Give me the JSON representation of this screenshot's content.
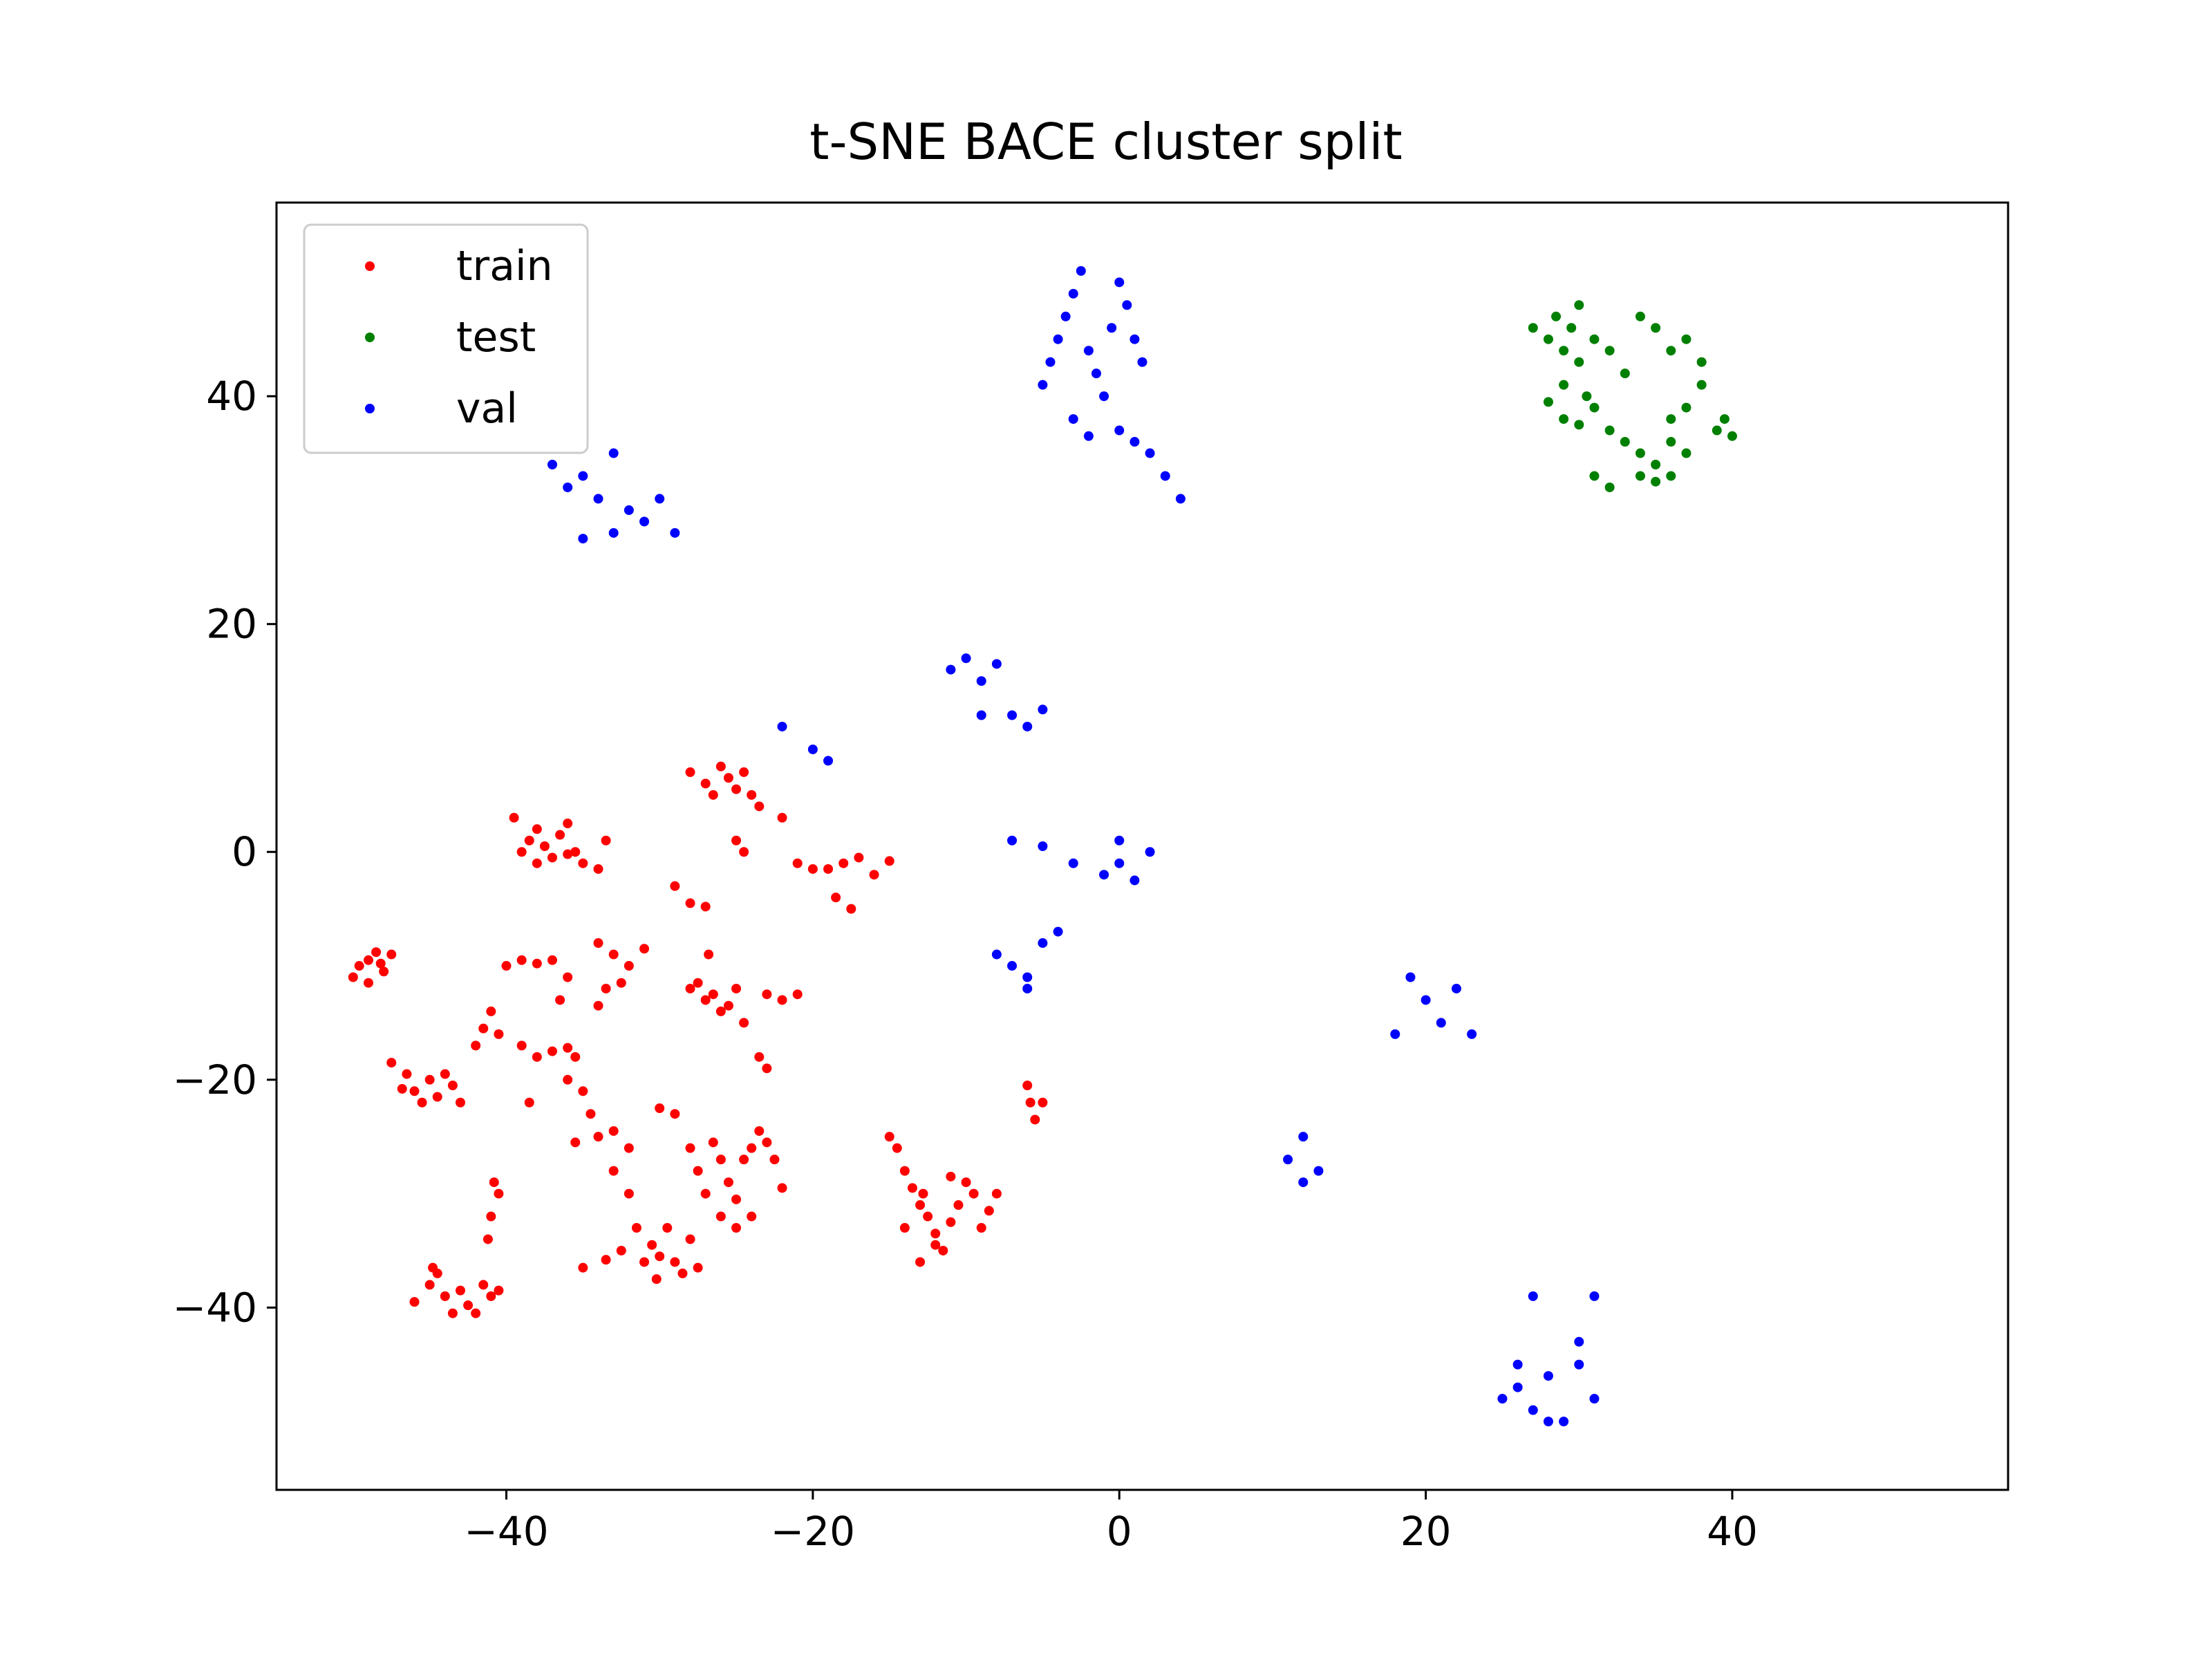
{
  "chart_data": {
    "type": "scatter",
    "title": "t-SNE BACE cluster split",
    "xlabel": "",
    "ylabel": "",
    "xlim": [
      -55,
      58
    ],
    "ylim": [
      -56,
      57
    ],
    "xticks": [
      -40,
      -20,
      0,
      20,
      40
    ],
    "yticks": [
      -40,
      -20,
      0,
      20,
      40
    ],
    "xtick_labels": [
      "−40",
      "−20",
      "0",
      "20",
      "40"
    ],
    "ytick_labels": [
      "−40",
      "−20",
      "0",
      "20",
      "40"
    ],
    "grid": false,
    "legend_position": "top-left",
    "series": [
      {
        "name": "train",
        "color": "#ff0000",
        "points": [
          [
            -50,
            -11
          ],
          [
            -49.6,
            -10
          ],
          [
            -49,
            -9.5
          ],
          [
            -48.5,
            -8.8
          ],
          [
            -48,
            -10.5
          ],
          [
            -47.5,
            -9
          ],
          [
            -49,
            -11.5
          ],
          [
            -48.2,
            -9.8
          ],
          [
            -47.5,
            -18.5
          ],
          [
            -46.5,
            -19.5
          ],
          [
            -46,
            -21
          ],
          [
            -45.5,
            -22
          ],
          [
            -45,
            -20
          ],
          [
            -44.5,
            -21.5
          ],
          [
            -44,
            -19.5
          ],
          [
            -43.5,
            -20.5
          ],
          [
            -43,
            -22
          ],
          [
            -46.8,
            -20.8
          ],
          [
            -46,
            -39.5
          ],
          [
            -45,
            -38
          ],
          [
            -44.5,
            -37
          ],
          [
            -44,
            -39
          ],
          [
            -43.5,
            -40.5
          ],
          [
            -43,
            -38.5
          ],
          [
            -42.5,
            -39.8
          ],
          [
            -42,
            -40.5
          ],
          [
            -41.5,
            -38
          ],
          [
            -41,
            -39
          ],
          [
            -40.5,
            -38.5
          ],
          [
            -44.8,
            -36.5
          ],
          [
            -41,
            -32
          ],
          [
            -40.5,
            -30
          ],
          [
            -41.2,
            -34
          ],
          [
            -40.8,
            -29
          ],
          [
            -39,
            0
          ],
          [
            -38.5,
            1
          ],
          [
            -38,
            2
          ],
          [
            -37.5,
            0.5
          ],
          [
            -37,
            -0.5
          ],
          [
            -36.5,
            1.5
          ],
          [
            -36,
            2.5
          ],
          [
            -35.5,
            0
          ],
          [
            -35,
            -1
          ],
          [
            -34,
            -1.5
          ],
          [
            -33.5,
            1
          ],
          [
            -39.5,
            3
          ],
          [
            -38,
            -1
          ],
          [
            -36,
            -0.2
          ],
          [
            -40,
            -10
          ],
          [
            -39,
            -9.5
          ],
          [
            -38,
            -9.8
          ],
          [
            -37,
            -9.5
          ],
          [
            -36,
            -11
          ],
          [
            -36.5,
            -13
          ],
          [
            -41,
            -14
          ],
          [
            -41.5,
            -15.5
          ],
          [
            -42,
            -17
          ],
          [
            -40.5,
            -16
          ],
          [
            -39,
            -17
          ],
          [
            -38,
            -18
          ],
          [
            -37,
            -17.5
          ],
          [
            -36,
            -17.2
          ],
          [
            -35.5,
            -18
          ],
          [
            -38.5,
            -22
          ],
          [
            -36,
            -20
          ],
          [
            -35,
            -21
          ],
          [
            -34.5,
            -23
          ],
          [
            -34,
            -25
          ],
          [
            -33,
            -24.5
          ],
          [
            -32,
            -26
          ],
          [
            -35.5,
            -25.5
          ],
          [
            -34,
            -8
          ],
          [
            -33,
            -9
          ],
          [
            -32,
            -10
          ],
          [
            -31,
            -8.5
          ],
          [
            -33.5,
            -12
          ],
          [
            -32.5,
            -11.5
          ],
          [
            -34,
            -13.5
          ],
          [
            -33,
            -28
          ],
          [
            -32,
            -30
          ],
          [
            -31.5,
            -33
          ],
          [
            -30.5,
            -34.5
          ],
          [
            -30,
            -35.5
          ],
          [
            -29.5,
            -33
          ],
          [
            -29,
            -36
          ],
          [
            -28.5,
            -37
          ],
          [
            -28,
            -34
          ],
          [
            -27.5,
            -36.5
          ],
          [
            -31,
            -36
          ],
          [
            -30.2,
            -37.5
          ],
          [
            -32.5,
            -35
          ],
          [
            -33.5,
            -35.8
          ],
          [
            -35,
            -36.5
          ],
          [
            -30,
            -22.5
          ],
          [
            -29,
            -23
          ],
          [
            -28,
            -26
          ],
          [
            -27.5,
            -28
          ],
          [
            -27,
            -30
          ],
          [
            -26.5,
            -25.5
          ],
          [
            -26,
            -27
          ],
          [
            -25.5,
            -29
          ],
          [
            -25,
            -30.5
          ],
          [
            -24.5,
            -27
          ],
          [
            -24,
            -26
          ],
          [
            -23.5,
            -24.5
          ],
          [
            -23,
            -25.5
          ],
          [
            -22.5,
            -27
          ],
          [
            -22,
            -29.5
          ],
          [
            -26,
            -32
          ],
          [
            -25,
            -33
          ],
          [
            -24,
            -32
          ],
          [
            -28,
            -12
          ],
          [
            -27,
            -13
          ],
          [
            -26.5,
            -12.5
          ],
          [
            -26,
            -14
          ],
          [
            -25.5,
            -13.5
          ],
          [
            -25,
            -12
          ],
          [
            -27.5,
            -11.5
          ],
          [
            -26.8,
            -9
          ],
          [
            -24.5,
            -15
          ],
          [
            -23,
            -12.5
          ],
          [
            -22,
            -13
          ],
          [
            -21,
            -12.5
          ],
          [
            -23.5,
            -18
          ],
          [
            -23,
            -19
          ],
          [
            -28,
            7
          ],
          [
            -27,
            6
          ],
          [
            -26.5,
            5
          ],
          [
            -26,
            7.5
          ],
          [
            -25.5,
            6.5
          ],
          [
            -25,
            5.5
          ],
          [
            -24.5,
            7
          ],
          [
            -24,
            5
          ],
          [
            -23.5,
            4
          ],
          [
            -22,
            3
          ],
          [
            -25,
            1
          ],
          [
            -24.5,
            0
          ],
          [
            -29,
            -3
          ],
          [
            -28,
            -4.5
          ],
          [
            -27,
            -4.8
          ],
          [
            -21,
            -1
          ],
          [
            -20,
            -1.5
          ],
          [
            -19,
            -1.5
          ],
          [
            -18,
            -1
          ],
          [
            -17,
            -0.5
          ],
          [
            -16,
            -2
          ],
          [
            -15,
            -0.8
          ],
          [
            -18.5,
            -4
          ],
          [
            -17.5,
            -5
          ],
          [
            -15,
            -25
          ],
          [
            -14.5,
            -26
          ],
          [
            -14,
            -28
          ],
          [
            -13.5,
            -29.5
          ],
          [
            -13,
            -31
          ],
          [
            -12.5,
            -32
          ],
          [
            -12,
            -33.5
          ],
          [
            -11.5,
            -35
          ],
          [
            -13,
            -36
          ],
          [
            -12,
            -34.5
          ],
          [
            -11,
            -32.5
          ],
          [
            -10.5,
            -31
          ],
          [
            -10,
            -29
          ],
          [
            -9.5,
            -30
          ],
          [
            -9,
            -33
          ],
          [
            -8.5,
            -31.5
          ],
          [
            -8,
            -30
          ],
          [
            -11,
            -28.5
          ],
          [
            -14,
            -33
          ],
          [
            -12.8,
            -30
          ],
          [
            -6,
            -20.5
          ],
          [
            -5.8,
            -22
          ],
          [
            -5.5,
            -23.5
          ],
          [
            -5,
            -22
          ]
        ]
      },
      {
        "name": "test",
        "color": "#008000",
        "points": [
          [
            27,
            46
          ],
          [
            28,
            45
          ],
          [
            28.5,
            47
          ],
          [
            29,
            44
          ],
          [
            29.5,
            46
          ],
          [
            30,
            43
          ],
          [
            30,
            48
          ],
          [
            31,
            45
          ],
          [
            32,
            44
          ],
          [
            33,
            42
          ],
          [
            29,
            41
          ],
          [
            30.5,
            40
          ],
          [
            28,
            39.5
          ],
          [
            29,
            38
          ],
          [
            30,
            37.5
          ],
          [
            31,
            39
          ],
          [
            32,
            37
          ],
          [
            33,
            36
          ],
          [
            34,
            35
          ],
          [
            35,
            34
          ],
          [
            36,
            36
          ],
          [
            37,
            35
          ],
          [
            34,
            33
          ],
          [
            35,
            32.5
          ],
          [
            36,
            33
          ],
          [
            31,
            33
          ],
          [
            32,
            32
          ],
          [
            34,
            47
          ],
          [
            35,
            46
          ],
          [
            36,
            44
          ],
          [
            37,
            45
          ],
          [
            38,
            43
          ],
          [
            38,
            41
          ],
          [
            37,
            39
          ],
          [
            36,
            38
          ],
          [
            39,
            37
          ],
          [
            40,
            36.5
          ],
          [
            39.5,
            38
          ]
        ],
        "_extra": []
      },
      {
        "name": "val",
        "color": "#0000ff",
        "points": [
          [
            -5,
            41
          ],
          [
            -4.5,
            43
          ],
          [
            -4,
            45
          ],
          [
            -3.5,
            47
          ],
          [
            -3,
            49
          ],
          [
            -2.5,
            51
          ],
          [
            -2,
            44
          ],
          [
            -1.5,
            42
          ],
          [
            -1,
            40
          ],
          [
            -0.5,
            46
          ],
          [
            0,
            50
          ],
          [
            0.5,
            48
          ],
          [
            1,
            45
          ],
          [
            1.5,
            43
          ],
          [
            -3,
            38
          ],
          [
            -2,
            36.5
          ],
          [
            0,
            37
          ],
          [
            1,
            36
          ],
          [
            2,
            35
          ],
          [
            3,
            33
          ],
          [
            4,
            31
          ],
          [
            -37,
            34
          ],
          [
            -36,
            32
          ],
          [
            -35,
            33
          ],
          [
            -34,
            31
          ],
          [
            -33,
            35
          ],
          [
            -32,
            30
          ],
          [
            -31,
            29
          ],
          [
            -30,
            31
          ],
          [
            -29,
            28
          ],
          [
            -33,
            28
          ],
          [
            -35,
            27.5
          ],
          [
            -11,
            16
          ],
          [
            -10,
            17
          ],
          [
            -9,
            15
          ],
          [
            -8,
            16.5
          ],
          [
            -7,
            12
          ],
          [
            -6,
            11
          ],
          [
            -5,
            12.5
          ],
          [
            -9,
            12
          ],
          [
            -22,
            11
          ],
          [
            -20,
            9
          ],
          [
            -19,
            8
          ],
          [
            -7,
            1
          ],
          [
            -5,
            0.5
          ],
          [
            -3,
            -1
          ],
          [
            -1,
            -2
          ],
          [
            0,
            -1
          ],
          [
            1,
            -2.5
          ],
          [
            0,
            1
          ],
          [
            2,
            0
          ],
          [
            -8,
            -9
          ],
          [
            -7,
            -10
          ],
          [
            -6,
            -11
          ],
          [
            -5,
            -8
          ],
          [
            -4,
            -7
          ],
          [
            -6,
            -12
          ],
          [
            19,
            -11
          ],
          [
            20,
            -13
          ],
          [
            21,
            -15
          ],
          [
            22,
            -12
          ],
          [
            23,
            -16
          ],
          [
            18,
            -16
          ],
          [
            11,
            -27
          ],
          [
            12,
            -29
          ],
          [
            13,
            -28
          ],
          [
            12,
            -25
          ],
          [
            25,
            -48
          ],
          [
            26,
            -47
          ],
          [
            27,
            -49
          ],
          [
            28,
            -46
          ],
          [
            29,
            -50
          ],
          [
            30,
            -45
          ],
          [
            31,
            -48
          ],
          [
            26,
            -45
          ],
          [
            28,
            -50
          ],
          [
            27,
            -39
          ],
          [
            30,
            -43
          ],
          [
            31,
            -39
          ]
        ]
      }
    ]
  }
}
